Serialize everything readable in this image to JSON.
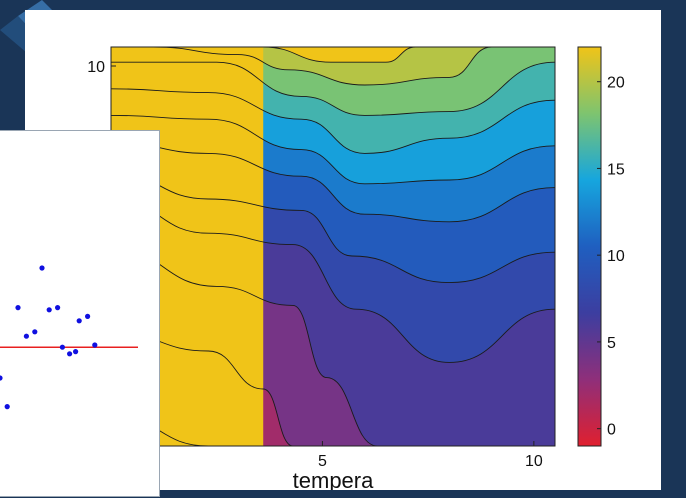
{
  "colors": {
    "background": "#1a3557",
    "panel": "#ffffff",
    "scatter_points": "#1010e0",
    "scatter_line": "#e82020",
    "colormap": [
      "#e0202f",
      "#8f2f7a",
      "#3c3ea0",
      "#1f5fc0",
      "#16a6de",
      "#7ec46f",
      "#f0c418"
    ]
  },
  "icons": {
    "background_arrow": "arrow-icon"
  },
  "chart_data": [
    {
      "type": "heatmap",
      "subtype": "filled-contour",
      "xlabel": "tempera",
      "ylabel": "",
      "xlim": [
        0,
        10.5
      ],
      "ylim": [
        0,
        10.5
      ],
      "xticks": [
        "5",
        "10"
      ],
      "xtick_values": [
        5,
        10
      ],
      "yticks": [
        "10"
      ],
      "ytick_values": [
        10
      ],
      "colorbar": {
        "ticks": [
          "0",
          "5",
          "10",
          "15",
          "20"
        ],
        "tick_values": [
          0,
          5,
          10,
          15,
          20
        ],
        "range": [
          -1,
          22
        ]
      },
      "levels": [
        1,
        3,
        5,
        7,
        9,
        11,
        13,
        15,
        17,
        19,
        21
      ],
      "contour_lines": [
        {
          "level": 1,
          "x": [
            0,
            2.3,
            2.3
          ],
          "y": [
            0.8,
            0,
            0
          ]
        },
        {
          "level": 3,
          "x": [
            0,
            2.3,
            3.6,
            4.3
          ],
          "y": [
            3.0,
            2.5,
            1.5,
            0
          ]
        },
        {
          "level": 5,
          "x": [
            0,
            2.5,
            4.3,
            5.1,
            6.3
          ],
          "y": [
            5.2,
            4.2,
            3.7,
            1.8,
            0
          ]
        },
        {
          "level": 7,
          "x": [
            0,
            2.3,
            4.3,
            5.8,
            8,
            10.5
          ],
          "y": [
            6.5,
            5.6,
            5.3,
            3.6,
            2.2,
            3.6
          ]
        },
        {
          "level": 9,
          "x": [
            0,
            2.3,
            4.5,
            5.7,
            8,
            10.5
          ],
          "y": [
            7.2,
            6.5,
            6.2,
            5.0,
            4.3,
            5.1
          ]
        },
        {
          "level": 11,
          "x": [
            0,
            2.3,
            4.5,
            6,
            8,
            10.5
          ],
          "y": [
            8.0,
            7.7,
            7.1,
            6.1,
            5.9,
            6.8
          ]
        },
        {
          "level": 13,
          "x": [
            0,
            2.3,
            4.5,
            6,
            8,
            10.5
          ],
          "y": [
            8.7,
            8.6,
            7.8,
            6.9,
            7.0,
            7.9
          ]
        },
        {
          "level": 15,
          "x": [
            0,
            2.3,
            4.5,
            6,
            8,
            10.5
          ],
          "y": [
            9.4,
            9.3,
            8.6,
            7.7,
            8.1,
            9.1
          ]
        },
        {
          "level": 17,
          "x": [
            0,
            2.5,
            4.5,
            6,
            8,
            10.5
          ],
          "y": [
            10.1,
            10.1,
            9.2,
            8.7,
            8.8,
            10.1
          ]
        },
        {
          "level": 19,
          "x": [
            1.0,
            3,
            4.2,
            6,
            8,
            9.0
          ],
          "y": [
            10.5,
            10.3,
            9.9,
            9.5,
            9.7,
            10.5
          ]
        },
        {
          "level": 21,
          "x": [
            3.6,
            5.2,
            6.5,
            7.2
          ],
          "y": [
            10.5,
            10.1,
            10.1,
            10.5
          ]
        }
      ]
    },
    {
      "type": "scatter",
      "xlim": [
        0,
        10
      ],
      "ylim": [
        0,
        10
      ],
      "points": [
        {
          "x": 0.0,
          "y": 1.5
        },
        {
          "x": 0.6,
          "y": 0.2
        },
        {
          "x": 1.5,
          "y": 4.7
        },
        {
          "x": 2.2,
          "y": 3.4
        },
        {
          "x": 2.9,
          "y": 3.6
        },
        {
          "x": 3.5,
          "y": 6.5
        },
        {
          "x": 4.1,
          "y": 4.6
        },
        {
          "x": 4.8,
          "y": 4.7
        },
        {
          "x": 5.2,
          "y": 2.9
        },
        {
          "x": 5.8,
          "y": 2.6
        },
        {
          "x": 6.3,
          "y": 2.7
        },
        {
          "x": 6.6,
          "y": 4.1
        },
        {
          "x": 7.3,
          "y": 4.3
        },
        {
          "x": 7.9,
          "y": 3.0
        }
      ],
      "hline": 2.9
    }
  ]
}
